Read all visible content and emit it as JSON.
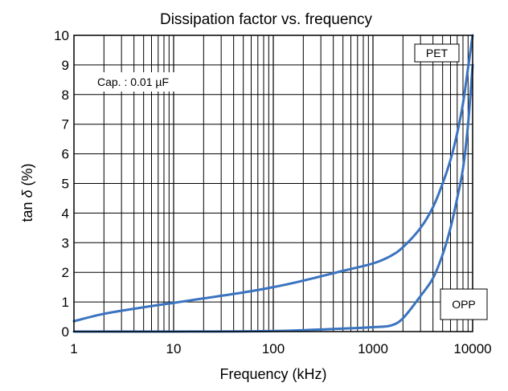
{
  "chart_data": {
    "type": "line",
    "title": "Dissipation factor vs. frequency",
    "xlabel": "Frequency (kHz)",
    "ylabel_prefix": "tan ",
    "ylabel_symbol": "δ",
    "ylabel_suffix": " (%)",
    "x_scale": "log",
    "xlim": [
      1,
      10000
    ],
    "ylim": [
      0,
      10
    ],
    "x_ticks": [
      1,
      10,
      100,
      1000,
      10000
    ],
    "x_tick_labels": [
      "1",
      "10",
      "100",
      "1000",
      "10000"
    ],
    "y_ticks": [
      0,
      1,
      2,
      3,
      4,
      5,
      6,
      7,
      8,
      9,
      10
    ],
    "y_tick_labels": [
      "0",
      "1",
      "2",
      "3",
      "4",
      "5",
      "6",
      "7",
      "8",
      "9",
      "10"
    ],
    "grid": true,
    "annotation": "Cap. : 0.01 µF",
    "series": [
      {
        "name": "PET",
        "color": "#3a73c0",
        "x": [
          1,
          2,
          5,
          10,
          20,
          50,
          100,
          200,
          500,
          1000,
          1500,
          2000,
          3000,
          4000,
          5000,
          6000,
          7000,
          8000,
          9000,
          10000
        ],
        "y": [
          0.35,
          0.6,
          0.82,
          0.97,
          1.12,
          1.32,
          1.5,
          1.72,
          2.05,
          2.3,
          2.55,
          2.85,
          3.5,
          4.2,
          5.0,
          5.8,
          6.7,
          7.7,
          8.9,
          10.0
        ]
      },
      {
        "name": "OPP",
        "color": "#3a73c0",
        "x": [
          1,
          5,
          10,
          100,
          500,
          1000,
          1500,
          2000,
          3000,
          4000,
          5000,
          6000,
          7000,
          8000,
          9000,
          10000
        ],
        "y": [
          0.0,
          0.0,
          0.0,
          0.02,
          0.1,
          0.15,
          0.2,
          0.45,
          1.2,
          1.8,
          2.6,
          3.5,
          4.5,
          5.5,
          7.0,
          9.0
        ]
      }
    ]
  }
}
